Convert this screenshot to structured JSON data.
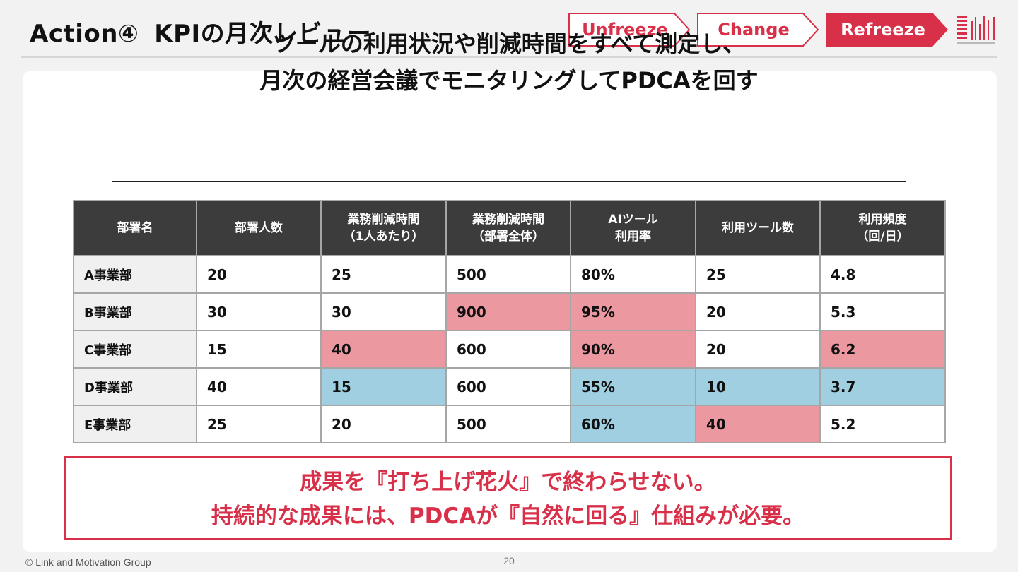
{
  "header": {
    "title_action": "Action④",
    "title_kpi": "KPIの月次レビュー",
    "steps": [
      {
        "label": "Unfreeze",
        "active": false
      },
      {
        "label": "Change",
        "active": false
      },
      {
        "label": "Refreeze",
        "active": true
      }
    ],
    "colors": {
      "accent": "#d9304a",
      "inactive_text": "#d9304a",
      "active_text": "#ffffff"
    }
  },
  "lead": {
    "line1": "ツールの利用状況や削減時間をすべて測定し、",
    "line2": "月次の経営会議でモニタリングしてPDCAを回す"
  },
  "table": {
    "headers": [
      "部署名",
      "部署人数",
      "業務削減時間\n（1人あたり）",
      "業務削減時間\n（部署全体）",
      "AIツール\n利用率",
      "利用ツール数",
      "利用頻度\n（回/日）"
    ],
    "rows": [
      {
        "cells": [
          "A事業部",
          "20",
          "25",
          "500",
          "80%",
          "25",
          "4.8"
        ],
        "highlight": [
          "",
          "",
          "",
          "",
          "",
          "",
          ""
        ]
      },
      {
        "cells": [
          "B事業部",
          "30",
          "30",
          "900",
          "95%",
          "20",
          "5.3"
        ],
        "highlight": [
          "",
          "",
          "",
          "hi",
          "hi",
          "",
          ""
        ]
      },
      {
        "cells": [
          "C事業部",
          "15",
          "40",
          "600",
          "90%",
          "20",
          "6.2"
        ],
        "highlight": [
          "",
          "",
          "hi",
          "",
          "hi",
          "",
          "hi"
        ]
      },
      {
        "cells": [
          "D事業部",
          "40",
          "15",
          "600",
          "55%",
          "10",
          "3.7"
        ],
        "highlight": [
          "",
          "",
          "lo",
          "",
          "lo",
          "lo",
          "lo"
        ]
      },
      {
        "cells": [
          "E事業部",
          "25",
          "20",
          "500",
          "60%",
          "40",
          "5.2"
        ],
        "highlight": [
          "",
          "",
          "",
          "",
          "lo",
          "hi",
          ""
        ]
      }
    ],
    "colors": {
      "high": "#eb98a1",
      "low": "#9fcfe1",
      "header_bg": "#3c3c3c"
    }
  },
  "message": {
    "line1": "成果を『打ち上げ花火』で終わらせない。",
    "line2": "持続的な成果には、PDCAが『自然に回る』仕組みが必要。"
  },
  "footer": {
    "copyright": "© Link and Motivation Group",
    "page_number": "20"
  }
}
